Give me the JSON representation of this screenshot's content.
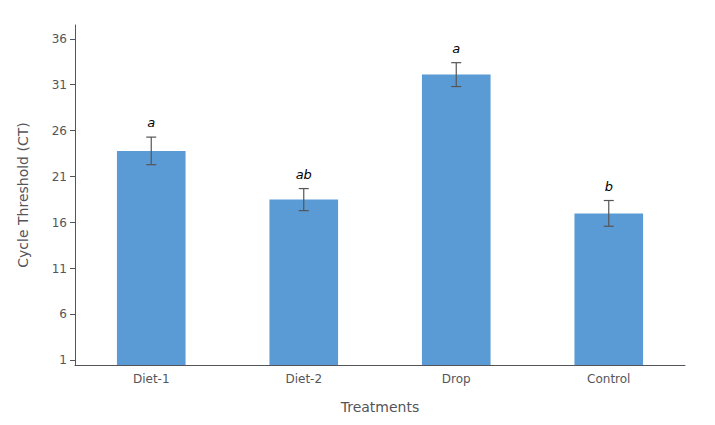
{
  "chart_data": {
    "type": "bar",
    "categories": [
      "Diet-1",
      "Diet-2",
      "Drop",
      "Control"
    ],
    "values": [
      23.8,
      18.5,
      32.1,
      17.0
    ],
    "errors": [
      1.5,
      1.2,
      1.3,
      1.4
    ],
    "annotations": [
      "a",
      "ab",
      "a",
      "b"
    ],
    "color": "#5B9BD5",
    "xlabel": "Treatments",
    "ylabel": "Cycle Threshold (CT)",
    "ylim": [
      0.5,
      37.5
    ],
    "yticks": [
      1,
      6,
      11,
      16,
      21,
      26,
      31,
      36
    ],
    "grid": false
  }
}
